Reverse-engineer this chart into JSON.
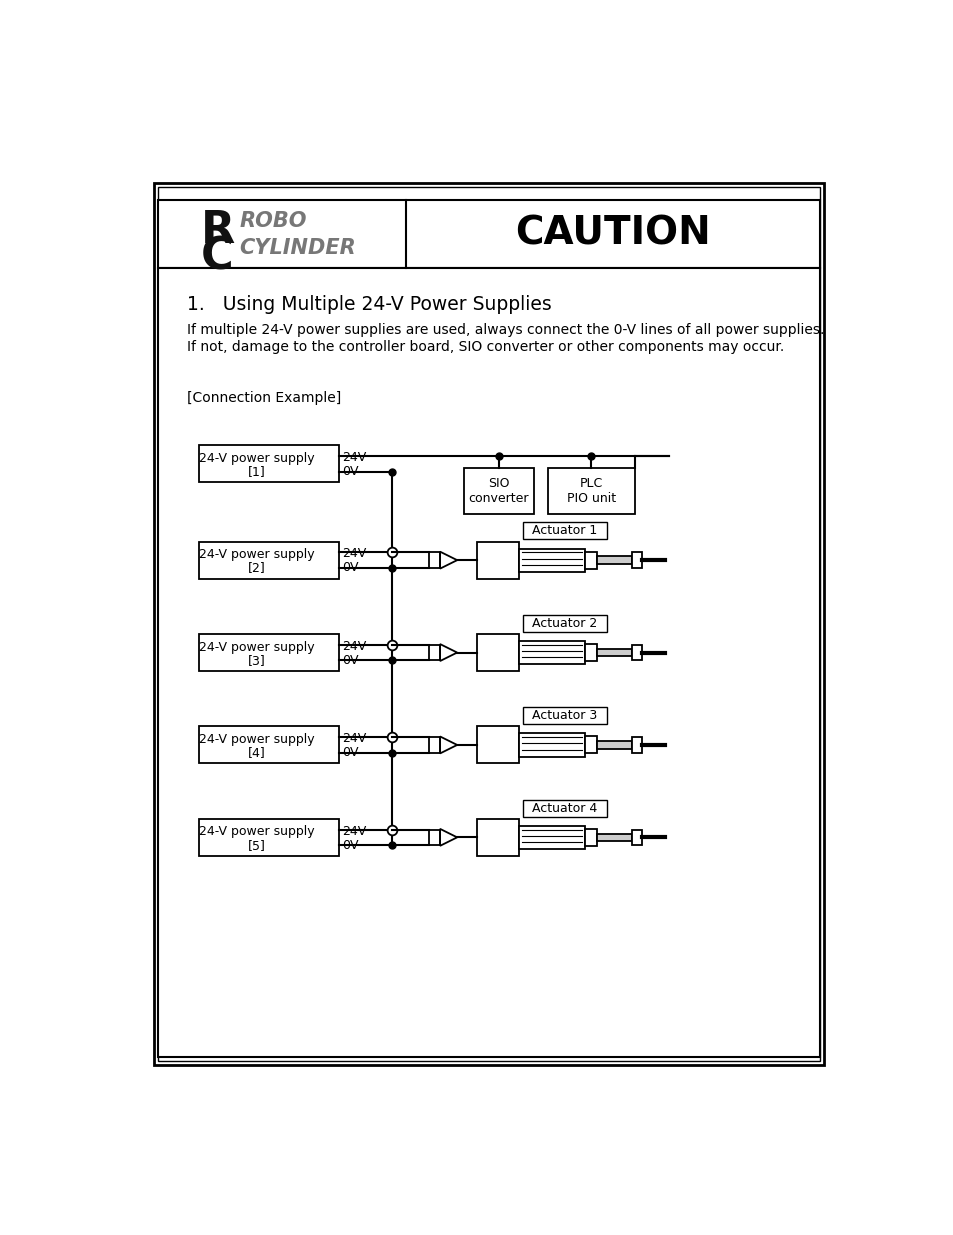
{
  "title": "CAUTION",
  "logo_text_robo": "ROBO",
  "logo_text_cylinder": "CYLINDER",
  "heading": "1.   Using Multiple 24-V Power Supplies",
  "body_line1": "If multiple 24-V power supplies are used, always connect the 0-V lines of all power supplies.",
  "body_line2": "If not, damage to the controller board, SIO converter or other components may occur.",
  "connection_label": "[Connection Example]",
  "power_supplies": [
    {
      "label1": "24-V power supply",
      "label2": "[1]",
      "v24": "24V",
      "v0": "0V"
    },
    {
      "label1": "24-V power supply",
      "label2": "[2]",
      "v24": "24V",
      "v0": "0V"
    },
    {
      "label1": "24-V power supply",
      "label2": "[3]",
      "v24": "24V",
      "v0": "0V"
    },
    {
      "label1": "24-V power supply",
      "label2": "[4]",
      "v24": "24V",
      "v0": "0V"
    },
    {
      "label1": "24-V power supply",
      "label2": "[5]",
      "v24": "24V",
      "v0": "0V"
    }
  ],
  "actuators": [
    "Actuator 1",
    "Actuator 2",
    "Actuator 3",
    "Actuator 4"
  ],
  "sio_label": "SIO\nconverter",
  "plc_label": "PLC\nPIO unit",
  "bg_color": "#ffffff",
  "border_color": "#000000",
  "line_color": "#000000",
  "text_color": "#000000",
  "gray_color": "#777777"
}
